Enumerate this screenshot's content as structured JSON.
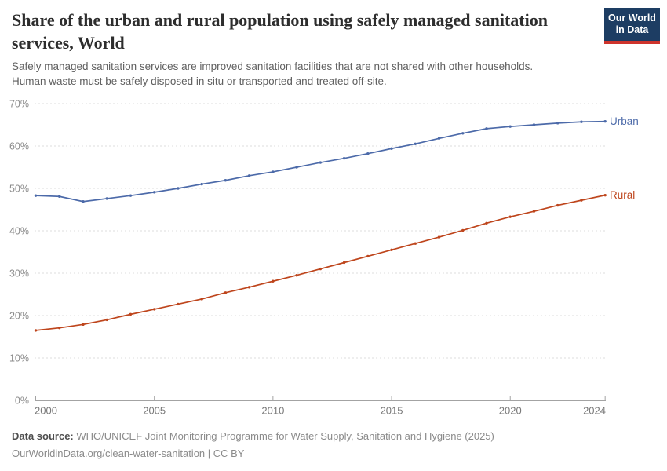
{
  "branding": {
    "logo_line1": "Our World",
    "logo_line2": "in Data",
    "navy": "#1D3D63",
    "red": "#CE342C"
  },
  "header": {
    "title_lines": [
      "Share of the urban and rural population using safely managed sanitation",
      "services, World"
    ],
    "subtitle_lines": [
      "Safely managed sanitation services are improved sanitation facilities that are not shared with other households.",
      "Human waste must be safely disposed in situ or transported and treated off-site."
    ]
  },
  "footer": {
    "source_label": "Data source:",
    "source_text": "WHO/UNICEF Joint Monitoring Programme for Water Supply, Sanitation and Hygiene (2025)",
    "license_line": "OurWorldinData.org/clean-water-sanitation | CC BY"
  },
  "chart_data": {
    "type": "line",
    "title": "Share of the urban and rural population using safely managed sanitation services, World",
    "xlabel": "",
    "ylabel": "",
    "x": [
      2000,
      2001,
      2002,
      2003,
      2004,
      2005,
      2006,
      2007,
      2008,
      2009,
      2010,
      2011,
      2012,
      2013,
      2014,
      2015,
      2016,
      2017,
      2018,
      2019,
      2020,
      2021,
      2022,
      2023,
      2024
    ],
    "series": [
      {
        "name": "Urban",
        "color": "#4C6AA9",
        "values": [
          48.3,
          48.1,
          46.9,
          47.6,
          48.3,
          49.1,
          50.0,
          51.0,
          51.9,
          53.0,
          53.9,
          55.0,
          56.1,
          57.1,
          58.2,
          59.4,
          60.5,
          61.8,
          63.0,
          64.1,
          64.6,
          65.0,
          65.4,
          65.7,
          65.8
        ]
      },
      {
        "name": "Rural",
        "color": "#BE451C",
        "values": [
          16.5,
          17.1,
          17.9,
          19.0,
          20.3,
          21.5,
          22.7,
          23.9,
          25.4,
          26.7,
          28.1,
          29.5,
          31.0,
          32.5,
          34.0,
          35.5,
          37.0,
          38.5,
          40.1,
          41.8,
          43.3,
          44.6,
          46.0,
          47.2,
          48.4
        ]
      }
    ],
    "ylim": [
      0,
      70
    ],
    "yticks": [
      0,
      10,
      20,
      30,
      40,
      50,
      60,
      70
    ],
    "ytick_suffix": "%",
    "xticks": [
      2000,
      2005,
      2010,
      2015,
      2020,
      2024
    ],
    "grid": "horizontal-dashed",
    "legend_position": "right-of-line-end"
  }
}
